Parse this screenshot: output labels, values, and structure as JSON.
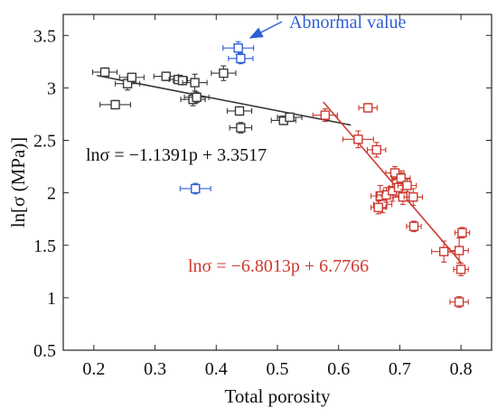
{
  "chart_data": {
    "type": "scatter",
    "title": "",
    "xlabel": "Total porosity",
    "ylabel": "ln[σ (MPa)]",
    "xlim": [
      0.15,
      0.85
    ],
    "ylim": [
      0.5,
      3.7
    ],
    "x_ticks": [
      0.2,
      0.3,
      0.4,
      0.5,
      0.6,
      0.7,
      0.8
    ],
    "y_ticks": [
      0.5,
      1,
      1.5,
      2,
      2.5,
      3,
      3.5
    ],
    "x_tick_labels": [
      "0.2",
      "0.3",
      "0.4",
      "0.5",
      "0.6",
      "0.7",
      "0.8"
    ],
    "y_tick_labels": [
      "0.5",
      "1",
      "1.5",
      "2",
      "2.5",
      "3",
      "3.5"
    ],
    "grid": false,
    "series": [
      {
        "color": "#3a3a3a",
        "marker": "square-open",
        "points": [
          {
            "x": 0.218,
            "y": 3.15,
            "xerr": 0.02,
            "yerr": 0.04
          },
          {
            "x": 0.235,
            "y": 2.84,
            "xerr": 0.025,
            "yerr": 0.04
          },
          {
            "x": 0.255,
            "y": 3.04,
            "xerr": 0.02,
            "yerr": 0.06
          },
          {
            "x": 0.262,
            "y": 3.1,
            "xerr": 0.02,
            "yerr": 0.04
          },
          {
            "x": 0.318,
            "y": 3.11,
            "xerr": 0.02,
            "yerr": 0.04
          },
          {
            "x": 0.338,
            "y": 3.08,
            "xerr": 0.015,
            "yerr": 0.04
          },
          {
            "x": 0.345,
            "y": 3.07,
            "xerr": 0.015,
            "yerr": 0.04
          },
          {
            "x": 0.365,
            "y": 3.05,
            "xerr": 0.02,
            "yerr": 0.08
          },
          {
            "x": 0.362,
            "y": 2.89,
            "xerr": 0.02,
            "yerr": 0.06
          },
          {
            "x": 0.368,
            "y": 2.91,
            "xerr": 0.02,
            "yerr": 0.05
          },
          {
            "x": 0.412,
            "y": 3.14,
            "xerr": 0.02,
            "yerr": 0.07
          },
          {
            "x": 0.438,
            "y": 2.78,
            "xerr": 0.02,
            "yerr": 0.04
          },
          {
            "x": 0.44,
            "y": 2.62,
            "xerr": 0.018,
            "yerr": 0.05
          },
          {
            "x": 0.51,
            "y": 2.69,
            "xerr": 0.02,
            "yerr": 0.04
          },
          {
            "x": 0.52,
            "y": 2.72,
            "xerr": 0.02,
            "yerr": 0.04
          }
        ]
      },
      {
        "color": "#2e5fd6",
        "marker": "square-open",
        "points": [
          {
            "x": 0.436,
            "y": 3.38,
            "xerr": 0.025,
            "yerr": 0.06
          },
          {
            "x": 0.44,
            "y": 3.28,
            "xerr": 0.02,
            "yerr": 0.05
          },
          {
            "x": 0.366,
            "y": 2.04,
            "xerr": 0.025,
            "yerr": 0.05
          }
        ]
      },
      {
        "color": "#cc3a30",
        "marker": "square-open",
        "points": [
          {
            "x": 0.578,
            "y": 2.74,
            "xerr": 0.02,
            "yerr": 0.06
          },
          {
            "x": 0.648,
            "y": 2.81,
            "xerr": 0.015,
            "yerr": 0.04
          },
          {
            "x": 0.632,
            "y": 2.51,
            "xerr": 0.025,
            "yerr": 0.08
          },
          {
            "x": 0.662,
            "y": 2.41,
            "xerr": 0.015,
            "yerr": 0.07
          },
          {
            "x": 0.668,
            "y": 1.97,
            "xerr": 0.015,
            "yerr": 0.1
          },
          {
            "x": 0.672,
            "y": 1.89,
            "xerr": 0.015,
            "yerr": 0.08
          },
          {
            "x": 0.665,
            "y": 1.86,
            "xerr": 0.012,
            "yerr": 0.06
          },
          {
            "x": 0.678,
            "y": 1.98,
            "xerr": 0.015,
            "yerr": 0.07
          },
          {
            "x": 0.688,
            "y": 2.02,
            "xerr": 0.015,
            "yerr": 0.1
          },
          {
            "x": 0.692,
            "y": 2.19,
            "xerr": 0.015,
            "yerr": 0.06
          },
          {
            "x": 0.698,
            "y": 2.05,
            "xerr": 0.015,
            "yerr": 0.08
          },
          {
            "x": 0.702,
            "y": 2.14,
            "xerr": 0.015,
            "yerr": 0.07
          },
          {
            "x": 0.705,
            "y": 1.96,
            "xerr": 0.015,
            "yerr": 0.07
          },
          {
            "x": 0.712,
            "y": 2.07,
            "xerr": 0.015,
            "yerr": 0.06
          },
          {
            "x": 0.722,
            "y": 1.96,
            "xerr": 0.015,
            "yerr": 0.08
          },
          {
            "x": 0.723,
            "y": 1.68,
            "xerr": 0.012,
            "yerr": 0.05
          },
          {
            "x": 0.772,
            "y": 1.44,
            "xerr": 0.02,
            "yerr": 0.1
          },
          {
            "x": 0.797,
            "y": 1.45,
            "xerr": 0.015,
            "yerr": 0.12
          },
          {
            "x": 0.802,
            "y": 1.62,
            "xerr": 0.012,
            "yerr": 0.05
          },
          {
            "x": 0.8,
            "y": 1.27,
            "xerr": 0.012,
            "yerr": 0.06
          },
          {
            "x": 0.797,
            "y": 0.96,
            "xerr": 0.015,
            "yerr": 0.05
          }
        ]
      }
    ],
    "fit_lines": [
      {
        "color": "#3a3a3a",
        "slope": -1.1391,
        "intercept": 3.3517,
        "x_range": [
          0.205,
          0.62
        ],
        "equation": "lnσ = −1.1391p + 3.3517"
      },
      {
        "color": "#cc3a30",
        "slope": -6.8013,
        "intercept": 6.7766,
        "x_range": [
          0.575,
          0.8
        ],
        "equation": "lnσ = −6.8013p + 6.7766"
      }
    ],
    "annotations": [
      {
        "text": "Abnormal value",
        "color": "#2e5fd6"
      }
    ]
  }
}
